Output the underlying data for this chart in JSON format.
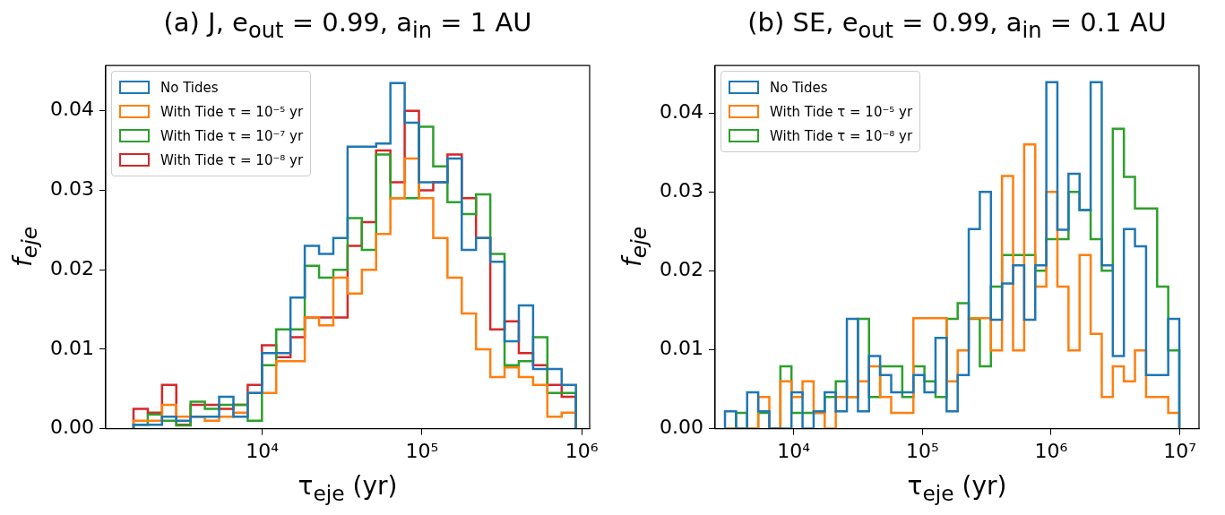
{
  "chart_data": [
    {
      "type": "histogram",
      "title": "(a)  J, e$_{out}$ = 0.99, a$_{in}$ = 1 AU",
      "xlabel": "τ$_{eje}$ (yr)",
      "ylabel": "f$_{eje}$",
      "log": "x",
      "legend": "top left",
      "bins": [
        1567,
        1924,
        2363,
        2903,
        3566,
        4380,
        5380,
        6610,
        8120,
        9970,
        12250,
        15040,
        18480,
        22700,
        27880,
        34250,
        42060,
        51670,
        63460,
        77950,
        95720,
        117600,
        144400,
        177400,
        217900,
        267600,
        328700,
        403700,
        495900,
        609100,
        748200,
        919000
      ],
      "xlim": [
        1050,
        1120000
      ],
      "xticks": [
        {
          "value": 10000,
          "label": "10⁴"
        },
        {
          "value": 100000,
          "label": "10⁵"
        },
        {
          "value": 1000000,
          "label": "10⁶"
        }
      ],
      "ylim": [
        0,
        0.0457
      ],
      "yticks": [
        {
          "value": 0,
          "label": "0.00"
        },
        {
          "value": 0.01,
          "label": "0.01"
        },
        {
          "value": 0.02,
          "label": "0.02"
        },
        {
          "value": 0.03,
          "label": "0.03"
        },
        {
          "value": 0.04,
          "label": "0.04"
        }
      ],
      "series": [
        {
          "name": "No Tides",
          "color": "#1f77b4",
          "values": [
            0.0005,
            0.0005,
            0.0015,
            0.001,
            0.0015,
            0.0015,
            0.004,
            0.0015,
            0.0045,
            0.0095,
            0.0095,
            0.0165,
            0.023,
            0.022,
            0.024,
            0.0355,
            0.0355,
            0.0359,
            0.0435,
            0.0385,
            0.031,
            0.031,
            0.034,
            0.0225,
            0.024,
            0.021,
            0.011,
            0.0155,
            0.0075,
            0.0075,
            0.0055
          ]
        },
        {
          "name": "With Tide τ = 10⁻⁵ yr",
          "color": "#ff7f0e",
          "values": [
            0.001,
            0.001,
            0.003,
            0.0015,
            0.0015,
            0.001,
            0.0015,
            0.002,
            0.0045,
            0.0045,
            0.0085,
            0.0085,
            0.014,
            0.013,
            0.019,
            0.017,
            0.02,
            0.0245,
            0.029,
            0.034,
            0.029,
            0.024,
            0.019,
            0.0145,
            0.01,
            0.0065,
            0.0077,
            0.0065,
            0.0055,
            0.0015,
            0.002
          ]
        },
        {
          "name": "With Tide τ = 10⁻⁷ yr",
          "color": "#2ca02c",
          "values": [
            0.0005,
            0.0018,
            0.001,
            0.0004,
            0.0034,
            0.0025,
            0.003,
            0.003,
            0.001,
            0.008,
            0.0125,
            0.0125,
            0.0205,
            0.019,
            0.02,
            0.0265,
            0.0225,
            0.0345,
            0.029,
            0.029,
            0.038,
            0.033,
            0.0285,
            0.027,
            0.0295,
            0.022,
            0.008,
            0.0085,
            0.0115,
            0.0045,
            0.0045
          ]
        },
        {
          "name": "With Tide τ = 10⁻⁸ yr",
          "color": "#d62728",
          "values": [
            0.0025,
            0.002,
            0.0055,
            0.0005,
            0.003,
            0.003,
            0.0025,
            0.003,
            0.0055,
            0.0105,
            0.009,
            0.0115,
            0.014,
            0.014,
            0.014,
            0.023,
            0.026,
            0.035,
            0.031,
            0.04,
            0.03,
            0.031,
            0.0345,
            0.029,
            0.024,
            0.0125,
            0.0135,
            0.0095,
            0.008,
            0.0055,
            0.004
          ]
        }
      ]
    },
    {
      "type": "histogram",
      "title": "(b)  SE, e$_{out}$ = 0.99, a$_{in}$ = 0.1 AU",
      "xlabel": "τ$_{eje}$ (yr)",
      "ylabel": "f$_{eje}$",
      "log": "x",
      "legend": "top left",
      "bins": [
        2924,
        3566,
        4347,
        5301,
        6463,
        7880,
        9607,
        11710,
        14280,
        17410,
        21230,
        25890,
        31570,
        38480,
        46920,
        57210,
        69750,
        85050,
        103700,
        126400,
        154200,
        188000,
        229200,
        279400,
        340700,
        415500,
        506600,
        617700,
        753100,
        918300,
        1119000,
        1365000,
        1664000,
        2029000,
        2474000,
        3017000,
        3678000,
        4485000,
        5468000,
        6667000,
        8128000,
        9910000
      ],
      "xlim": [
        2450,
        14100000
      ],
      "xticks": [
        {
          "value": 10000,
          "label": "10⁴"
        },
        {
          "value": 100000,
          "label": "10⁵"
        },
        {
          "value": 1000000,
          "label": "10⁶"
        },
        {
          "value": 10000000,
          "label": "10⁷"
        }
      ],
      "ylim": [
        0,
        0.046
      ],
      "yticks": [
        {
          "value": 0,
          "label": "0.00"
        },
        {
          "value": 0.01,
          "label": "0.01"
        },
        {
          "value": 0.02,
          "label": "0.02"
        },
        {
          "value": 0.03,
          "label": "0.03"
        },
        {
          "value": 0.04,
          "label": "0.04"
        }
      ],
      "series": [
        {
          "name": "No Tides",
          "color": "#1f77b4",
          "values": [
            0.0022,
            0,
            0.0046,
            0.0022,
            0,
            0,
            0.0046,
            0,
            0.0022,
            0.0046,
            0.0022,
            0.0139,
            0.0022,
            0.0092,
            0.0068,
            0.0046,
            0.0046,
            0.0068,
            0.0046,
            0.0115,
            0.0022,
            0.0068,
            0.0253,
            0.03,
            0.0138,
            0.0184,
            0.0207,
            0.0138,
            0.0207,
            0.0439,
            0.0252,
            0.0323,
            0.0277,
            0.0439,
            0.0207,
            0.0092,
            0.0253,
            0.0231,
            0.0068,
            0.0068,
            0.0139
          ]
        },
        {
          "name": "With Tide τ = 10⁻⁵ yr",
          "color": "#ff7f0e",
          "values": [
            0,
            0,
            0,
            0.004,
            0,
            0.006,
            0.004,
            0.006,
            0.002,
            0,
            0.004,
            0.004,
            0.006,
            0.0079,
            0.004,
            0.002,
            0.002,
            0.014,
            0.014,
            0.014,
            0.006,
            0.0099,
            0.014,
            0.014,
            0.0099,
            0.032,
            0.0099,
            0.036,
            0.018,
            0.03,
            0.018,
            0.0099,
            0.022,
            0.012,
            0.004,
            0.0079,
            0.006,
            0.0099,
            0.004,
            0.004,
            0.002
          ]
        },
        {
          "name": "With Tide τ = 10⁻⁸ yr",
          "color": "#2ca02c",
          "values": [
            0,
            0.002,
            0,
            0.002,
            0,
            0.0079,
            0.002,
            0.002,
            0.002,
            0.004,
            0.006,
            0.004,
            0.0139,
            0.004,
            0.0079,
            0.0079,
            0.004,
            0.0079,
            0.006,
            0.004,
            0.0139,
            0.0159,
            0.0139,
            0.0079,
            0.018,
            0.022,
            0.022,
            0.022,
            0.02,
            0.024,
            0.024,
            0.03,
            0.0277,
            0.024,
            0.02,
            0.038,
            0.0319,
            0.0279,
            0.0279,
            0.018,
            0.0099
          ]
        }
      ]
    }
  ]
}
